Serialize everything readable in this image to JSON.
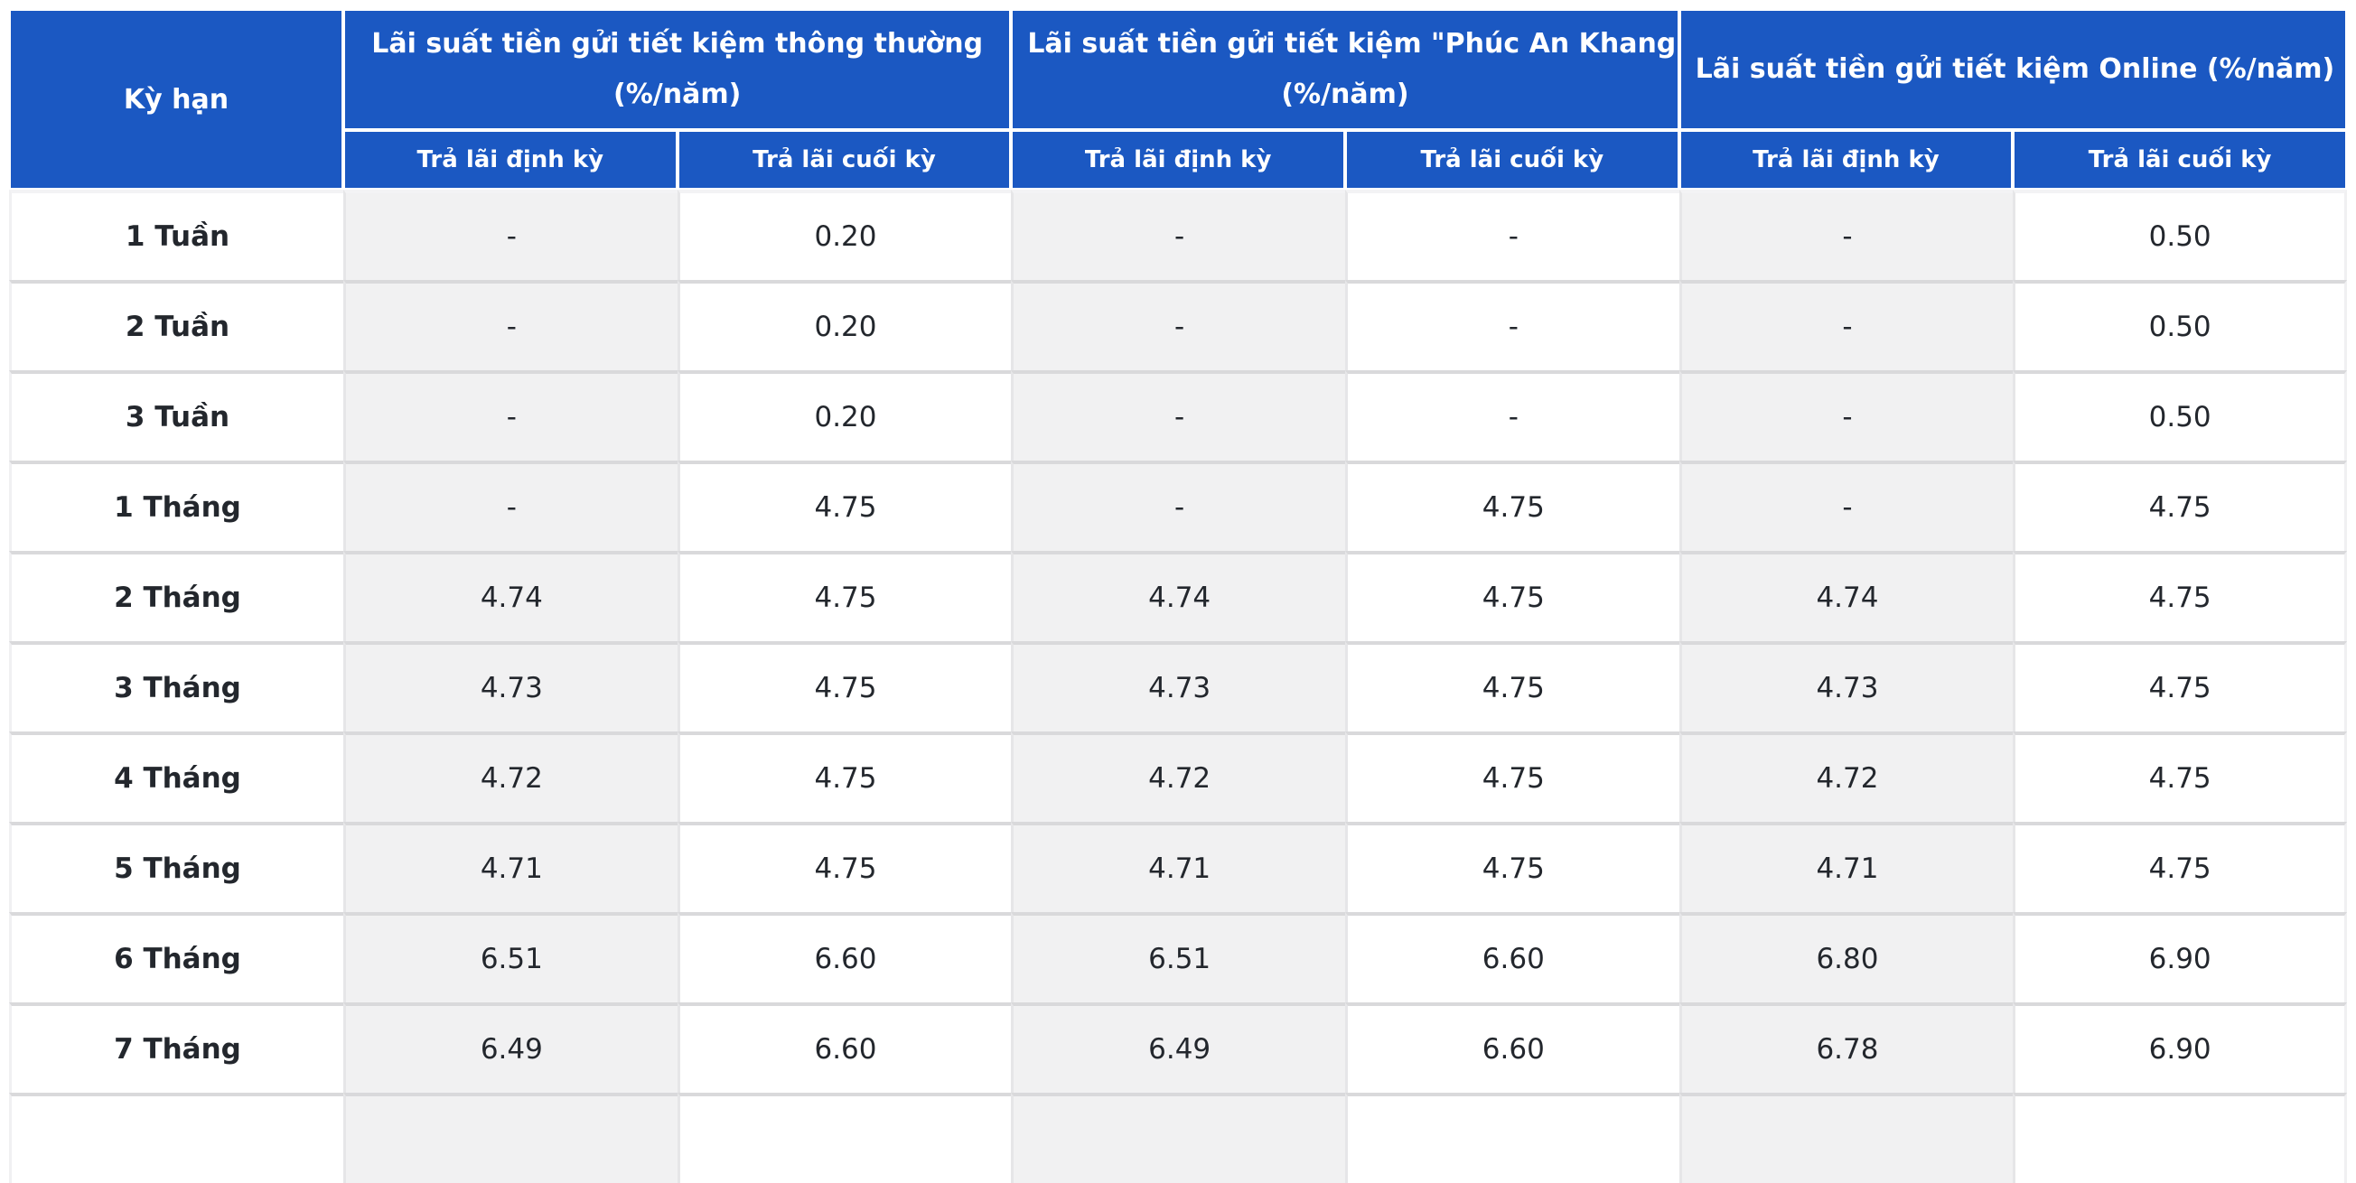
{
  "page": {
    "background": "#ffffff"
  },
  "colors": {
    "page_bg": "#ffffff",
    "header_blue": "#1b58c2",
    "header_text": "#ffffff",
    "cell_shade": "#f1f1f2",
    "cell_plain": "#ffffff",
    "row_border": "#d9d9db",
    "col_border": "#e6e6e8",
    "text": "#23272d"
  },
  "table": {
    "corner_header": "Kỳ hạn",
    "groups": [
      {
        "line1": "Lãi suất tiền gửi tiết kiệm thông thường",
        "line2": "(%/năm)"
      },
      {
        "line1": "Lãi suất tiền gửi tiết kiệm \"Phúc An Khang\"",
        "line2": "(%/năm)"
      },
      {
        "line1": "Lãi suất tiền gửi tiết kiệm Online (%/năm)",
        "line2": ""
      }
    ],
    "subheaders": [
      "Trả lãi định kỳ",
      "Trả lãi cuối kỳ",
      "Trả lãi định kỳ",
      "Trả lãi cuối kỳ",
      "Trả lãi định kỳ",
      "Trả lãi cuối kỳ"
    ],
    "rows": [
      {
        "term": "1 Tuần",
        "values": [
          "-",
          "0.20",
          "-",
          "-",
          "-",
          "0.50"
        ]
      },
      {
        "term": "2 Tuần",
        "values": [
          "-",
          "0.20",
          "-",
          "-",
          "-",
          "0.50"
        ]
      },
      {
        "term": "3 Tuần",
        "values": [
          "-",
          "0.20",
          "-",
          "-",
          "-",
          "0.50"
        ]
      },
      {
        "term": "1 Tháng",
        "values": [
          "-",
          "4.75",
          "-",
          "4.75",
          "-",
          "4.75"
        ]
      },
      {
        "term": "2 Tháng",
        "values": [
          "4.74",
          "4.75",
          "4.74",
          "4.75",
          "4.74",
          "4.75"
        ]
      },
      {
        "term": "3 Tháng",
        "values": [
          "4.73",
          "4.75",
          "4.73",
          "4.75",
          "4.73",
          "4.75"
        ]
      },
      {
        "term": "4 Tháng",
        "values": [
          "4.72",
          "4.75",
          "4.72",
          "4.75",
          "4.72",
          "4.75"
        ]
      },
      {
        "term": "5 Tháng",
        "values": [
          "4.71",
          "4.75",
          "4.71",
          "4.75",
          "4.71",
          "4.75"
        ]
      },
      {
        "term": "6 Tháng",
        "values": [
          "6.51",
          "6.60",
          "6.51",
          "6.60",
          "6.80",
          "6.90"
        ]
      },
      {
        "term": "7 Tháng",
        "values": [
          "6.49",
          "6.60",
          "6.49",
          "6.60",
          "6.78",
          "6.90"
        ]
      }
    ]
  }
}
